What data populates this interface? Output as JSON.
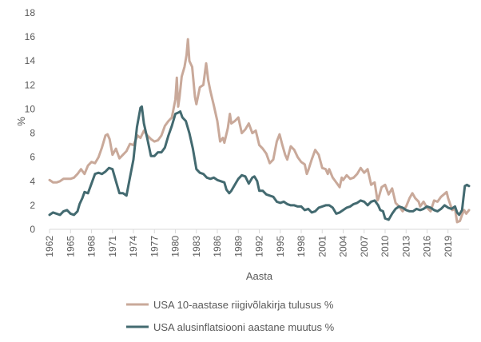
{
  "chart_data": {
    "type": "line",
    "title": "",
    "xlabel": "Aasta",
    "ylabel": "%",
    "ylim": [
      0,
      18
    ],
    "xlim": [
      1962,
      2022
    ],
    "y_ticks": [
      0,
      2,
      4,
      6,
      8,
      10,
      12,
      14,
      16,
      18
    ],
    "y_tick_labels": [
      "0",
      "2",
      "4",
      "6",
      "8",
      "10",
      "12",
      "14",
      "16",
      "18"
    ],
    "x_ticks": [
      1962,
      1965,
      1968,
      1971,
      1974,
      1977,
      1980,
      1983,
      1986,
      1989,
      1992,
      1995,
      1998,
      2001,
      2004,
      2007,
      2010,
      2013,
      2016,
      2019
    ],
    "x_tick_labels": [
      "1962",
      "1965",
      "1968",
      "1971",
      "1974",
      "1977",
      "1980",
      "1983",
      "1986",
      "1989",
      "1992",
      "1995",
      "1998",
      "2001",
      "2004",
      "2007",
      "2010",
      "2013",
      "2016",
      "2019"
    ],
    "grid": false,
    "legend_position": "bottom",
    "series": [
      {
        "name": "USA 10-aastase riigivõlakirja tulusus %",
        "color": "#c9a99a",
        "points": [
          [
            1962.0,
            4.1
          ],
          [
            1962.5,
            3.9
          ],
          [
            1963.0,
            3.9
          ],
          [
            1963.5,
            4.0
          ],
          [
            1964.0,
            4.2
          ],
          [
            1964.5,
            4.2
          ],
          [
            1965.0,
            4.2
          ],
          [
            1965.5,
            4.3
          ],
          [
            1966.0,
            4.6
          ],
          [
            1966.5,
            5.0
          ],
          [
            1967.0,
            4.6
          ],
          [
            1967.5,
            5.3
          ],
          [
            1968.0,
            5.6
          ],
          [
            1968.5,
            5.5
          ],
          [
            1969.0,
            6.0
          ],
          [
            1969.5,
            6.8
          ],
          [
            1970.0,
            7.8
          ],
          [
            1970.3,
            7.9
          ],
          [
            1970.6,
            7.5
          ],
          [
            1971.0,
            6.2
          ],
          [
            1971.5,
            6.7
          ],
          [
            1972.0,
            5.9
          ],
          [
            1972.5,
            6.2
          ],
          [
            1973.0,
            6.5
          ],
          [
            1973.5,
            7.1
          ],
          [
            1974.0,
            7.0
          ],
          [
            1974.6,
            7.8
          ],
          [
            1975.0,
            7.6
          ],
          [
            1975.5,
            8.2
          ],
          [
            1976.0,
            7.8
          ],
          [
            1976.5,
            7.5
          ],
          [
            1977.0,
            7.3
          ],
          [
            1977.5,
            7.4
          ],
          [
            1978.0,
            7.8
          ],
          [
            1978.5,
            8.6
          ],
          [
            1979.0,
            9.0
          ],
          [
            1979.5,
            9.3
          ],
          [
            1980.0,
            10.8
          ],
          [
            1980.2,
            12.6
          ],
          [
            1980.4,
            10.2
          ],
          [
            1980.6,
            11.0
          ],
          [
            1980.9,
            12.7
          ],
          [
            1981.3,
            13.5
          ],
          [
            1981.6,
            14.5
          ],
          [
            1981.8,
            15.8
          ],
          [
            1982.0,
            14.0
          ],
          [
            1982.4,
            13.5
          ],
          [
            1982.8,
            11.0
          ],
          [
            1983.0,
            10.4
          ],
          [
            1983.5,
            11.8
          ],
          [
            1984.0,
            12.0
          ],
          [
            1984.4,
            13.8
          ],
          [
            1984.7,
            12.4
          ],
          [
            1985.0,
            11.5
          ],
          [
            1985.5,
            10.3
          ],
          [
            1986.0,
            9.0
          ],
          [
            1986.4,
            7.3
          ],
          [
            1986.8,
            7.6
          ],
          [
            1987.0,
            7.2
          ],
          [
            1987.5,
            8.4
          ],
          [
            1987.8,
            9.6
          ],
          [
            1988.0,
            8.8
          ],
          [
            1988.5,
            9.0
          ],
          [
            1989.0,
            9.3
          ],
          [
            1989.5,
            8.0
          ],
          [
            1990.0,
            8.3
          ],
          [
            1990.5,
            8.8
          ],
          [
            1991.0,
            8.0
          ],
          [
            1991.5,
            8.2
          ],
          [
            1992.0,
            7.0
          ],
          [
            1992.5,
            6.7
          ],
          [
            1993.0,
            6.3
          ],
          [
            1993.5,
            5.5
          ],
          [
            1994.0,
            5.8
          ],
          [
            1994.5,
            7.3
          ],
          [
            1994.9,
            7.9
          ],
          [
            1995.3,
            7.0
          ],
          [
            1995.7,
            6.2
          ],
          [
            1996.0,
            5.8
          ],
          [
            1996.5,
            6.9
          ],
          [
            1997.0,
            6.6
          ],
          [
            1997.5,
            6.0
          ],
          [
            1998.0,
            5.6
          ],
          [
            1998.5,
            5.4
          ],
          [
            1998.8,
            4.6
          ],
          [
            1999.0,
            4.9
          ],
          [
            1999.5,
            5.8
          ],
          [
            2000.0,
            6.6
          ],
          [
            2000.5,
            6.2
          ],
          [
            2001.0,
            5.1
          ],
          [
            2001.5,
            5.0
          ],
          [
            2001.8,
            4.6
          ],
          [
            2002.0,
            5.0
          ],
          [
            2002.5,
            4.3
          ],
          [
            2003.0,
            3.9
          ],
          [
            2003.5,
            3.5
          ],
          [
            2003.8,
            4.3
          ],
          [
            2004.0,
            4.1
          ],
          [
            2004.5,
            4.5
          ],
          [
            2005.0,
            4.2
          ],
          [
            2005.5,
            4.3
          ],
          [
            2006.0,
            4.6
          ],
          [
            2006.5,
            5.1
          ],
          [
            2007.0,
            4.7
          ],
          [
            2007.5,
            5.0
          ],
          [
            2008.0,
            3.7
          ],
          [
            2008.5,
            3.9
          ],
          [
            2008.9,
            2.4
          ],
          [
            2009.0,
            2.5
          ],
          [
            2009.5,
            3.5
          ],
          [
            2010.0,
            3.7
          ],
          [
            2010.5,
            2.9
          ],
          [
            2011.0,
            3.4
          ],
          [
            2011.5,
            2.2
          ],
          [
            2012.0,
            1.9
          ],
          [
            2012.5,
            1.5
          ],
          [
            2013.0,
            1.9
          ],
          [
            2013.5,
            2.6
          ],
          [
            2013.9,
            3.0
          ],
          [
            2014.3,
            2.6
          ],
          [
            2014.8,
            2.3
          ],
          [
            2015.0,
            1.9
          ],
          [
            2015.5,
            2.3
          ],
          [
            2016.0,
            1.8
          ],
          [
            2016.5,
            1.5
          ],
          [
            2017.0,
            2.4
          ],
          [
            2017.5,
            2.3
          ],
          [
            2018.0,
            2.7
          ],
          [
            2018.8,
            3.1
          ],
          [
            2019.0,
            2.6
          ],
          [
            2019.6,
            1.6
          ],
          [
            2020.0,
            1.7
          ],
          [
            2020.3,
            0.6
          ],
          [
            2020.7,
            0.7
          ],
          [
            2021.0,
            1.2
          ],
          [
            2021.3,
            1.6
          ],
          [
            2021.6,
            1.3
          ],
          [
            2022.0,
            1.6
          ]
        ]
      },
      {
        "name": "USA alusinflatsiooni aastane muutus %",
        "color": "#436a70",
        "points": [
          [
            1962.0,
            1.2
          ],
          [
            1962.5,
            1.4
          ],
          [
            1963.0,
            1.3
          ],
          [
            1963.5,
            1.2
          ],
          [
            1964.0,
            1.5
          ],
          [
            1964.5,
            1.6
          ],
          [
            1965.0,
            1.3
          ],
          [
            1965.5,
            1.2
          ],
          [
            1966.0,
            1.5
          ],
          [
            1966.3,
            2.1
          ],
          [
            1966.7,
            2.6
          ],
          [
            1967.0,
            3.1
          ],
          [
            1967.5,
            3.0
          ],
          [
            1968.0,
            3.8
          ],
          [
            1968.5,
            4.6
          ],
          [
            1969.0,
            4.7
          ],
          [
            1969.5,
            4.6
          ],
          [
            1970.0,
            4.8
          ],
          [
            1970.5,
            5.1
          ],
          [
            1971.0,
            5.0
          ],
          [
            1971.5,
            4.0
          ],
          [
            1972.0,
            3.0
          ],
          [
            1972.5,
            3.0
          ],
          [
            1973.0,
            2.8
          ],
          [
            1973.5,
            4.3
          ],
          [
            1974.0,
            5.8
          ],
          [
            1974.5,
            8.5
          ],
          [
            1975.0,
            10.1
          ],
          [
            1975.2,
            10.2
          ],
          [
            1975.5,
            8.8
          ],
          [
            1976.0,
            7.5
          ],
          [
            1976.5,
            6.1
          ],
          [
            1977.0,
            6.1
          ],
          [
            1977.5,
            6.4
          ],
          [
            1978.0,
            6.4
          ],
          [
            1978.5,
            6.8
          ],
          [
            1979.0,
            7.8
          ],
          [
            1979.5,
            8.6
          ],
          [
            1980.0,
            9.6
          ],
          [
            1980.4,
            9.7
          ],
          [
            1980.7,
            9.8
          ],
          [
            1981.0,
            9.3
          ],
          [
            1981.5,
            9.0
          ],
          [
            1982.0,
            8.0
          ],
          [
            1982.5,
            6.7
          ],
          [
            1983.0,
            5.0
          ],
          [
            1983.5,
            4.7
          ],
          [
            1984.0,
            4.6
          ],
          [
            1984.5,
            4.3
          ],
          [
            1985.0,
            4.2
          ],
          [
            1985.5,
            4.3
          ],
          [
            1986.0,
            4.1
          ],
          [
            1986.5,
            4.0
          ],
          [
            1987.0,
            3.9
          ],
          [
            1987.3,
            3.3
          ],
          [
            1987.7,
            3.0
          ],
          [
            1988.0,
            3.2
          ],
          [
            1988.5,
            3.7
          ],
          [
            1989.0,
            4.2
          ],
          [
            1989.5,
            4.5
          ],
          [
            1990.0,
            4.4
          ],
          [
            1990.5,
            3.8
          ],
          [
            1991.0,
            4.3
          ],
          [
            1991.3,
            4.4
          ],
          [
            1991.7,
            4.0
          ],
          [
            1992.0,
            3.2
          ],
          [
            1992.5,
            3.2
          ],
          [
            1993.0,
            2.9
          ],
          [
            1993.5,
            2.8
          ],
          [
            1994.0,
            2.7
          ],
          [
            1994.5,
            2.3
          ],
          [
            1995.0,
            2.2
          ],
          [
            1995.5,
            2.3
          ],
          [
            1996.0,
            2.1
          ],
          [
            1996.5,
            2.0
          ],
          [
            1997.0,
            2.0
          ],
          [
            1997.5,
            1.9
          ],
          [
            1998.0,
            1.9
          ],
          [
            1998.5,
            1.6
          ],
          [
            1999.0,
            1.7
          ],
          [
            1999.5,
            1.4
          ],
          [
            2000.0,
            1.5
          ],
          [
            2000.5,
            1.8
          ],
          [
            2001.0,
            1.9
          ],
          [
            2001.5,
            2.0
          ],
          [
            2002.0,
            2.0
          ],
          [
            2002.5,
            1.8
          ],
          [
            2003.0,
            1.3
          ],
          [
            2003.5,
            1.4
          ],
          [
            2004.0,
            1.6
          ],
          [
            2004.5,
            1.8
          ],
          [
            2005.0,
            1.9
          ],
          [
            2005.5,
            2.1
          ],
          [
            2006.0,
            2.2
          ],
          [
            2006.5,
            2.4
          ],
          [
            2007.0,
            2.3
          ],
          [
            2007.5,
            2.0
          ],
          [
            2008.0,
            2.3
          ],
          [
            2008.5,
            2.4
          ],
          [
            2009.0,
            2.0
          ],
          [
            2009.3,
            1.6
          ],
          [
            2009.7,
            1.5
          ],
          [
            2010.0,
            0.9
          ],
          [
            2010.5,
            0.8
          ],
          [
            2011.0,
            1.3
          ],
          [
            2011.5,
            1.7
          ],
          [
            2012.0,
            1.9
          ],
          [
            2012.5,
            1.8
          ],
          [
            2013.0,
            1.6
          ],
          [
            2013.5,
            1.5
          ],
          [
            2014.0,
            1.5
          ],
          [
            2014.5,
            1.7
          ],
          [
            2015.0,
            1.6
          ],
          [
            2015.5,
            1.7
          ],
          [
            2016.0,
            1.9
          ],
          [
            2016.5,
            1.8
          ],
          [
            2017.0,
            1.6
          ],
          [
            2017.5,
            1.5
          ],
          [
            2018.0,
            1.7
          ],
          [
            2018.5,
            2.0
          ],
          [
            2019.0,
            1.8
          ],
          [
            2019.5,
            1.7
          ],
          [
            2020.0,
            1.9
          ],
          [
            2020.3,
            1.4
          ],
          [
            2020.6,
            1.2
          ],
          [
            2021.0,
            1.6
          ],
          [
            2021.2,
            2.6
          ],
          [
            2021.4,
            3.6
          ],
          [
            2021.7,
            3.7
          ],
          [
            2022.0,
            3.6
          ]
        ]
      }
    ]
  }
}
